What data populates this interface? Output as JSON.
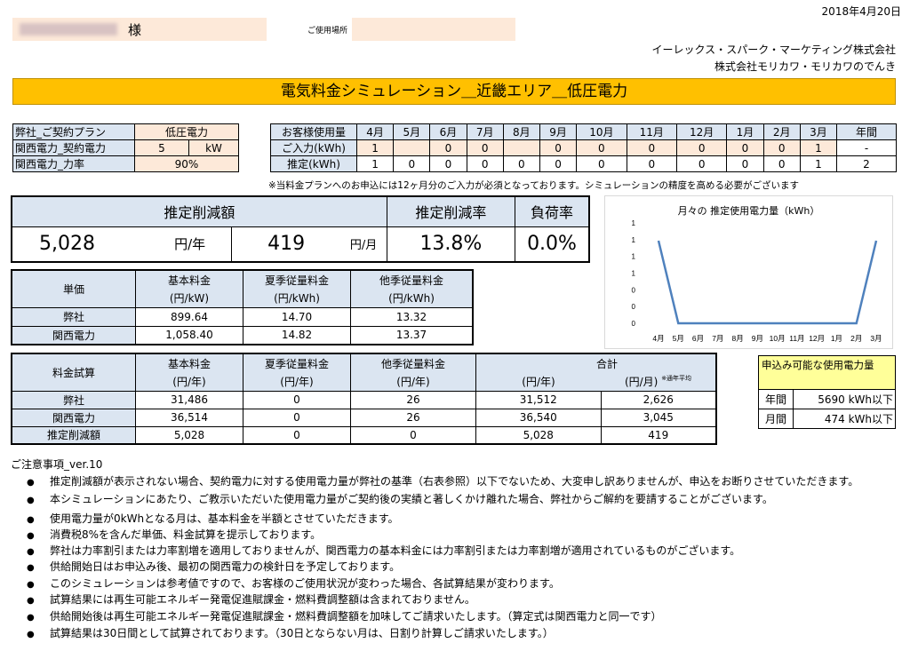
{
  "header": {
    "date": "2018年4月20日",
    "customer_suffix": "様",
    "location_label": "ご使用場所",
    "company1": "イーレックス・スパーク・マーケティング株式会社",
    "company2": "株式会社モリカワ・モリカワのでんき"
  },
  "title": "電気料金シミュレーション＿近畿エリア＿低圧電力",
  "contract": {
    "rows": [
      {
        "label": "弊社_ご契約プラン",
        "value": "低圧電力",
        "unit": ""
      },
      {
        "label": "関西電力_契約電力",
        "value": "5",
        "unit": "kW"
      },
      {
        "label": "関西電力_力率",
        "value": "90%",
        "unit": ""
      }
    ]
  },
  "usage": {
    "header_label": "お客様使用量",
    "months": [
      "4月",
      "5月",
      "6月",
      "7月",
      "8月",
      "9月",
      "10月",
      "11月",
      "12月",
      "1月",
      "2月",
      "3月"
    ],
    "annual_label": "年間",
    "input_label": "ご入力(kWh)",
    "input_values": [
      "1",
      "",
      "0",
      "0",
      "",
      "0",
      "0",
      "0",
      "0",
      "0",
      "0",
      "1"
    ],
    "input_annual": "-",
    "est_label": "推定(kWh)",
    "est_values": [
      "1",
      "0",
      "0",
      "0",
      "0",
      "0",
      "0",
      "0",
      "0",
      "0",
      "0",
      "1"
    ],
    "est_annual": "2",
    "note": "※当料金プランへのお申込には12ヶ月分のご入力が必須となっております。シミュレーションの精度を高める必要がございます"
  },
  "summary": {
    "reduction_label": "推定削減額",
    "rate_label": "推定削減率",
    "load_label": "負荷率",
    "annual_value": "5,028",
    "annual_unit": "円/年",
    "monthly_value": "419",
    "monthly_unit": "円/月",
    "rate_value": "13.8%",
    "load_value": "0.0%"
  },
  "unit_price": {
    "col0": "単価",
    "cols": [
      {
        "l1": "基本料金",
        "l2": "(円/kW)"
      },
      {
        "l1": "夏季従量料金",
        "l2": "(円/kWh)"
      },
      {
        "l1": "他季従量料金",
        "l2": "(円/kWh)"
      }
    ],
    "rows": [
      {
        "label": "弊社",
        "values": [
          "899.64",
          "14.70",
          "13.32"
        ]
      },
      {
        "label": "関西電力",
        "values": [
          "1,058.40",
          "14.82",
          "13.37"
        ]
      }
    ]
  },
  "fee_calc": {
    "col0": "料金試算",
    "cols": [
      {
        "l1": "基本料金",
        "l2": "(円/年)"
      },
      {
        "l1": "夏季従量料金",
        "l2": "(円/年)"
      },
      {
        "l1": "他季従量料金",
        "l2": "(円/年)"
      }
    ],
    "total_label": "合計",
    "total_year": "(円/年)",
    "total_month": "(円/月)",
    "total_note": "※通年平均",
    "rows": [
      {
        "label": "弊社",
        "values": [
          "31,486",
          "0",
          "26",
          "31,512",
          "2,626"
        ]
      },
      {
        "label": "関西電力",
        "values": [
          "36,514",
          "0",
          "26",
          "36,540",
          "3,045"
        ]
      },
      {
        "label": "推定削減額",
        "values": [
          "5,028",
          "0",
          "0",
          "5,028",
          "419"
        ]
      }
    ]
  },
  "applicable": {
    "title": "申込み可能な使用電力量",
    "rows": [
      {
        "label": "年間",
        "value": "5690 kWh以下"
      },
      {
        "label": "月間",
        "value": "474 kWh以下"
      }
    ]
  },
  "chart_data": {
    "type": "line",
    "title": "月々の 推定使用電力量（kWh）",
    "categories": [
      "4月",
      "5月",
      "6月",
      "7月",
      "8月",
      "9月",
      "10月",
      "11月",
      "12月",
      "1月",
      "2月",
      "3月"
    ],
    "values": [
      1,
      0,
      0,
      0,
      0,
      0,
      0,
      0,
      0,
      0,
      0,
      1
    ],
    "y_tick_labels": [
      "1",
      "1",
      "1",
      "1",
      "0",
      "0",
      "0"
    ],
    "ylim": [
      0,
      1
    ],
    "line_color": "#4f81bd",
    "grid": false
  },
  "notes": {
    "title": "ご注意事項_ver.10",
    "items": [
      "推定削減額が表示されない場合、契約電力に対する使用電力量が弊社の基準（右表参照）以下でないため、大変申し訳ありませんが、申込をお断りさせていただきます。",
      "本シミュレーションにあたり、ご教示いただいた使用電力量がご契約後の実績と著しくかけ離れた場合、弊社からご解約を要請することがございます。",
      "使用電力量が0kWhとなる月は、基本料金を半額とさせていただきます。",
      "消費税8%を含んだ単価、料金試算を提示しております。",
      "弊社は力率割引または力率割増を適用しておりませんが、関西電力の基本料金には力率割引または力率割増が適用されているものがございます。",
      "供給開始日はお申込み後、最初の関西電力の検針日を予定しております。",
      "このシミュレーションは参考値ですので、お客様のご使用状況が変わった場合、各試算結果が変わります。",
      "試算結果には再生可能エネルギー発電促進賦課金・燃料費調整額は含まれておりません。",
      "供給開始後は再生可能エネルギー発電促進賦課金・燃料費調整額を加味してご請求いたします。（算定式は関西電力と同一です）",
      "試算結果は30日間として試算されております。（30日とならない月は、日割り計算しご請求いたします。）"
    ]
  }
}
